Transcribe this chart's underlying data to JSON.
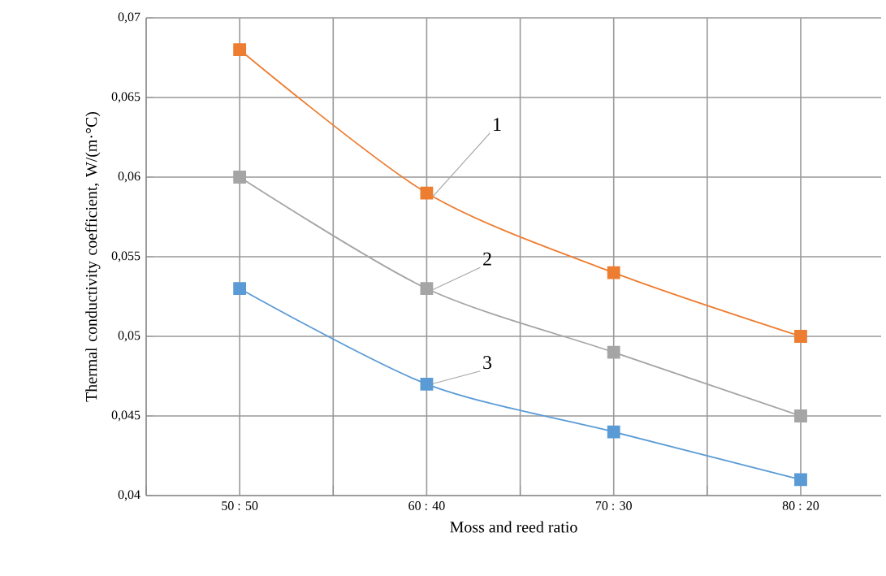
{
  "chart_data": {
    "type": "line",
    "xlabel": "Moss and reed ratio",
    "ylabel": "Thermal conductivity coefficient, W/(m·°C)",
    "categories": [
      "50 : 50",
      "60 : 40",
      "70 : 30",
      "80 : 20"
    ],
    "series": [
      {
        "color": "#ed7d31",
        "values": [
          0.068,
          0.059,
          0.054,
          0.05
        ]
      },
      {
        "color": "#a5a5a5",
        "values": [
          0.06,
          0.053,
          0.049,
          0.045
        ]
      },
      {
        "color": "#5b9bd5",
        "values": [
          0.053,
          0.047,
          0.044,
          0.041
        ]
      }
    ],
    "annotations": [
      {
        "text": "1",
        "x": "60 : 40",
        "y": 0.059
      },
      {
        "text": "2",
        "x": "60 : 40",
        "y": 0.053
      },
      {
        "text": "3",
        "x": "60 : 40",
        "y": 0.047
      }
    ],
    "ylim": [
      0.04,
      0.07
    ],
    "yticks": [
      {
        "value": 0.04,
        "label": "0,04"
      },
      {
        "value": 0.045,
        "label": "0,045"
      },
      {
        "value": 0.05,
        "label": "0,05"
      },
      {
        "value": 0.055,
        "label": "0,055"
      },
      {
        "value": 0.06,
        "label": "0,06"
      },
      {
        "value": 0.065,
        "label": "0,065"
      },
      {
        "value": 0.07,
        "label": "0,07"
      }
    ],
    "grid": true,
    "marker": "square",
    "line_style": "solid"
  }
}
